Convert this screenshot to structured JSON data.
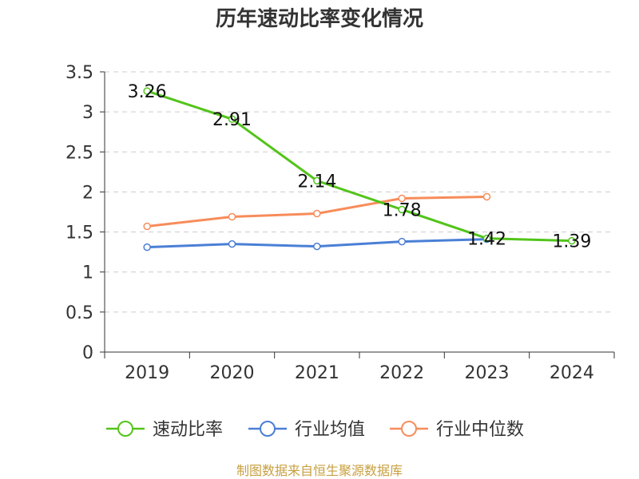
{
  "chart_data": {
    "type": "line",
    "title": "历年速动比率变化情况",
    "categories": [
      "2019",
      "2020",
      "2021",
      "2022",
      "2023",
      "2024"
    ],
    "ylim": [
      0,
      3.5
    ],
    "yticks": [
      "0",
      "0.5",
      "1",
      "1.5",
      "2",
      "2.5",
      "3",
      "3.5"
    ],
    "grid": true,
    "legend_position": "bottom",
    "series": [
      {
        "name": "速动比率",
        "color": "#52c41a",
        "values": [
          3.26,
          2.91,
          2.14,
          1.78,
          1.42,
          1.39
        ],
        "data_labels": [
          "3.26",
          "2.91",
          "2.14",
          "1.78",
          "1.42",
          "1.39"
        ]
      },
      {
        "name": "行业均值",
        "color": "#4a7fd6",
        "values": [
          1.31,
          1.35,
          1.32,
          1.38,
          1.41,
          null
        ]
      },
      {
        "name": "行业中位数",
        "color": "#f78c5a",
        "values": [
          1.57,
          1.69,
          1.73,
          1.92,
          1.94,
          null
        ]
      }
    ]
  },
  "source": {
    "text": "制图数据来自恒生聚源数据库",
    "color": "#c8a040"
  }
}
